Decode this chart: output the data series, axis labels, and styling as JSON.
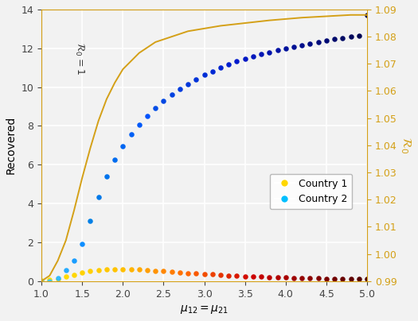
{
  "xlabel": "$\\mu_{12} = \\mu_{21}$",
  "ylabel_left": "Recovered",
  "ylabel_right": "$\\mathcal{R}_0$",
  "annotation": "$\\mathcal{R}_0 = 1$",
  "xlim": [
    1.0,
    5.0
  ],
  "ylim_left": [
    0,
    14
  ],
  "ylim_right": [
    0.99,
    1.09
  ],
  "xticks": [
    1.0,
    1.5,
    2.0,
    2.5,
    3.0,
    3.5,
    4.0,
    4.5,
    5.0
  ],
  "yticks_left": [
    0,
    2,
    4,
    6,
    8,
    10,
    12,
    14
  ],
  "yticks_right": [
    0.99,
    1.0,
    1.01,
    1.02,
    1.03,
    1.04,
    1.05,
    1.06,
    1.07,
    1.08,
    1.09
  ],
  "mu_values": [
    1.0,
    1.1,
    1.2,
    1.3,
    1.4,
    1.5,
    1.6,
    1.7,
    1.8,
    1.9,
    2.0,
    2.1,
    2.2,
    2.3,
    2.4,
    2.5,
    2.6,
    2.7,
    2.8,
    2.9,
    3.0,
    3.1,
    3.2,
    3.3,
    3.4,
    3.5,
    3.6,
    3.7,
    3.8,
    3.9,
    4.0,
    4.1,
    4.2,
    4.3,
    4.4,
    4.5,
    4.6,
    4.7,
    4.8,
    4.9,
    5.0
  ],
  "country1_values": [
    0.02,
    0.06,
    0.13,
    0.22,
    0.33,
    0.44,
    0.53,
    0.58,
    0.61,
    0.62,
    0.62,
    0.61,
    0.59,
    0.57,
    0.54,
    0.51,
    0.48,
    0.45,
    0.42,
    0.39,
    0.36,
    0.34,
    0.31,
    0.29,
    0.27,
    0.25,
    0.23,
    0.22,
    0.21,
    0.2,
    0.18,
    0.17,
    0.16,
    0.15,
    0.14,
    0.13,
    0.12,
    0.12,
    0.11,
    0.1,
    0.1
  ],
  "country2_values": [
    0.0,
    0.0,
    0.15,
    0.55,
    1.05,
    1.92,
    3.1,
    4.35,
    5.4,
    6.25,
    6.95,
    7.55,
    8.05,
    8.5,
    8.9,
    9.28,
    9.6,
    9.9,
    10.15,
    10.4,
    10.62,
    10.82,
    11.0,
    11.17,
    11.32,
    11.46,
    11.58,
    11.7,
    11.8,
    11.9,
    12.0,
    12.08,
    12.17,
    12.25,
    12.32,
    12.4,
    12.47,
    12.53,
    12.59,
    12.65,
    13.7
  ],
  "r0_x": [
    1.0,
    1.1,
    1.2,
    1.3,
    1.4,
    1.5,
    1.6,
    1.7,
    1.8,
    1.9,
    2.0,
    2.2,
    2.4,
    2.6,
    2.8,
    3.0,
    3.2,
    3.5,
    3.8,
    4.0,
    4.2,
    4.5,
    4.8,
    5.0
  ],
  "r0_y": [
    0.99,
    0.992,
    0.9975,
    1.005,
    1.016,
    1.028,
    1.039,
    1.049,
    1.057,
    1.063,
    1.068,
    1.074,
    1.078,
    1.08,
    1.082,
    1.083,
    1.084,
    1.085,
    1.086,
    1.0865,
    1.087,
    1.0875,
    1.088,
    1.088
  ],
  "background_color": "#f2f2f2",
  "grid_color": "#ffffff",
  "r0_line_color": "#d4a017"
}
